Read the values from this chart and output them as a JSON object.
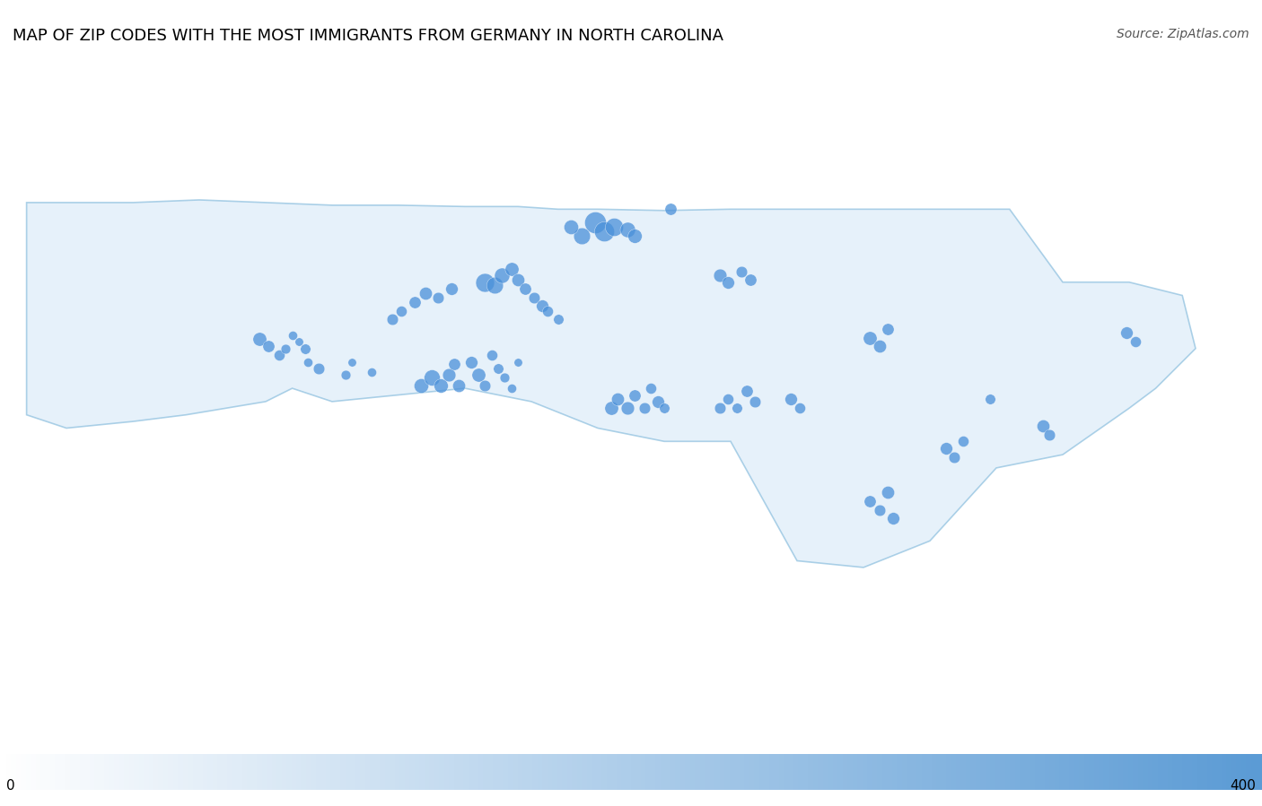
{
  "title": "MAP OF ZIP CODES WITH THE MOST IMMIGRANTS FROM GERMANY IN NORTH CAROLINA",
  "source": "Source: ZipAtlas.com",
  "colorbar_min": 0,
  "colorbar_max": 400,
  "map_extent": [
    -84.5,
    -75.0,
    33.5,
    36.8
  ],
  "nc_fill_color": "#d6e8f7",
  "nc_border_color": "#7ab5d9",
  "background_color": "#e8e0d8",
  "bubble_color": "#4a90d9",
  "bubble_alpha": 0.75,
  "title_fontsize": 13,
  "source_fontsize": 10,
  "colorbar_gradient_start": "#ffffff",
  "colorbar_gradient_end": "#5b9bd5",
  "bubbles": [
    {
      "lon": -82.55,
      "lat": 35.57,
      "value": 80
    },
    {
      "lon": -82.48,
      "lat": 35.52,
      "value": 60
    },
    {
      "lon": -82.4,
      "lat": 35.45,
      "value": 50
    },
    {
      "lon": -82.35,
      "lat": 35.5,
      "value": 40
    },
    {
      "lon": -82.3,
      "lat": 35.6,
      "value": 35
    },
    {
      "lon": -82.25,
      "lat": 35.55,
      "value": 30
    },
    {
      "lon": -82.2,
      "lat": 35.5,
      "value": 45
    },
    {
      "lon": -82.18,
      "lat": 35.4,
      "value": 35
    },
    {
      "lon": -82.1,
      "lat": 35.35,
      "value": 55
    },
    {
      "lon": -81.9,
      "lat": 35.3,
      "value": 40
    },
    {
      "lon": -81.85,
      "lat": 35.4,
      "value": 30
    },
    {
      "lon": -81.7,
      "lat": 35.32,
      "value": 35
    },
    {
      "lon": -81.33,
      "lat": 35.22,
      "value": 90
    },
    {
      "lon": -81.25,
      "lat": 35.28,
      "value": 110
    },
    {
      "lon": -81.18,
      "lat": 35.22,
      "value": 85
    },
    {
      "lon": -81.12,
      "lat": 35.3,
      "value": 75
    },
    {
      "lon": -81.08,
      "lat": 35.38,
      "value": 60
    },
    {
      "lon": -81.05,
      "lat": 35.22,
      "value": 70
    },
    {
      "lon": -80.95,
      "lat": 35.4,
      "value": 65
    },
    {
      "lon": -80.9,
      "lat": 35.3,
      "value": 80
    },
    {
      "lon": -80.85,
      "lat": 35.22,
      "value": 55
    },
    {
      "lon": -80.8,
      "lat": 35.45,
      "value": 50
    },
    {
      "lon": -80.75,
      "lat": 35.35,
      "value": 45
    },
    {
      "lon": -80.7,
      "lat": 35.28,
      "value": 40
    },
    {
      "lon": -80.65,
      "lat": 35.2,
      "value": 35
    },
    {
      "lon": -80.6,
      "lat": 35.4,
      "value": 30
    },
    {
      "lon": -81.55,
      "lat": 35.72,
      "value": 55
    },
    {
      "lon": -81.48,
      "lat": 35.78,
      "value": 50
    },
    {
      "lon": -81.38,
      "lat": 35.85,
      "value": 60
    },
    {
      "lon": -81.3,
      "lat": 35.92,
      "value": 70
    },
    {
      "lon": -81.2,
      "lat": 35.88,
      "value": 55
    },
    {
      "lon": -81.1,
      "lat": 35.95,
      "value": 65
    },
    {
      "lon": -80.85,
      "lat": 36.0,
      "value": 150
    },
    {
      "lon": -80.78,
      "lat": 35.98,
      "value": 120
    },
    {
      "lon": -80.72,
      "lat": 36.05,
      "value": 100
    },
    {
      "lon": -80.65,
      "lat": 36.1,
      "value": 80
    },
    {
      "lon": -80.6,
      "lat": 36.02,
      "value": 70
    },
    {
      "lon": -80.55,
      "lat": 35.95,
      "value": 60
    },
    {
      "lon": -80.48,
      "lat": 35.88,
      "value": 55
    },
    {
      "lon": -80.42,
      "lat": 35.82,
      "value": 65
    },
    {
      "lon": -80.38,
      "lat": 35.78,
      "value": 50
    },
    {
      "lon": -80.3,
      "lat": 35.72,
      "value": 45
    },
    {
      "lon": -79.9,
      "lat": 35.05,
      "value": 80
    },
    {
      "lon": -79.85,
      "lat": 35.12,
      "value": 70
    },
    {
      "lon": -79.78,
      "lat": 35.05,
      "value": 75
    },
    {
      "lon": -79.72,
      "lat": 35.15,
      "value": 60
    },
    {
      "lon": -79.65,
      "lat": 35.05,
      "value": 55
    },
    {
      "lon": -79.6,
      "lat": 35.2,
      "value": 50
    },
    {
      "lon": -79.55,
      "lat": 35.1,
      "value": 65
    },
    {
      "lon": -79.5,
      "lat": 35.05,
      "value": 45
    },
    {
      "lon": -79.08,
      "lat": 35.05,
      "value": 55
    },
    {
      "lon": -79.02,
      "lat": 35.12,
      "value": 50
    },
    {
      "lon": -78.95,
      "lat": 35.05,
      "value": 45
    },
    {
      "lon": -78.88,
      "lat": 35.18,
      "value": 60
    },
    {
      "lon": -78.82,
      "lat": 35.1,
      "value": 55
    },
    {
      "lon": -78.55,
      "lat": 35.12,
      "value": 65
    },
    {
      "lon": -78.48,
      "lat": 35.05,
      "value": 50
    },
    {
      "lon": -77.95,
      "lat": 35.58,
      "value": 80
    },
    {
      "lon": -77.88,
      "lat": 35.52,
      "value": 70
    },
    {
      "lon": -77.82,
      "lat": 35.65,
      "value": 60
    },
    {
      "lon": -77.38,
      "lat": 34.75,
      "value": 65
    },
    {
      "lon": -77.32,
      "lat": 34.68,
      "value": 55
    },
    {
      "lon": -77.25,
      "lat": 34.8,
      "value": 50
    },
    {
      "lon": -77.95,
      "lat": 34.35,
      "value": 60
    },
    {
      "lon": -77.88,
      "lat": 34.28,
      "value": 55
    },
    {
      "lon": -77.82,
      "lat": 34.42,
      "value": 70
    },
    {
      "lon": -77.78,
      "lat": 34.22,
      "value": 65
    },
    {
      "lon": -79.08,
      "lat": 36.05,
      "value": 75
    },
    {
      "lon": -79.02,
      "lat": 36.0,
      "value": 65
    },
    {
      "lon": -78.92,
      "lat": 36.08,
      "value": 55
    },
    {
      "lon": -78.85,
      "lat": 36.02,
      "value": 60
    },
    {
      "lon": -80.02,
      "lat": 36.45,
      "value": 200
    },
    {
      "lon": -79.95,
      "lat": 36.38,
      "value": 170
    },
    {
      "lon": -79.88,
      "lat": 36.42,
      "value": 140
    },
    {
      "lon": -80.12,
      "lat": 36.35,
      "value": 120
    },
    {
      "lon": -80.2,
      "lat": 36.42,
      "value": 90
    },
    {
      "lon": -79.78,
      "lat": 36.4,
      "value": 100
    },
    {
      "lon": -79.72,
      "lat": 36.35,
      "value": 85
    },
    {
      "lon": -79.45,
      "lat": 36.55,
      "value": 60
    },
    {
      "lon": -76.02,
      "lat": 35.62,
      "value": 65
    },
    {
      "lon": -75.95,
      "lat": 35.55,
      "value": 50
    },
    {
      "lon": -76.65,
      "lat": 34.92,
      "value": 70
    },
    {
      "lon": -76.6,
      "lat": 34.85,
      "value": 55
    },
    {
      "lon": -77.05,
      "lat": 35.12,
      "value": 45
    }
  ]
}
